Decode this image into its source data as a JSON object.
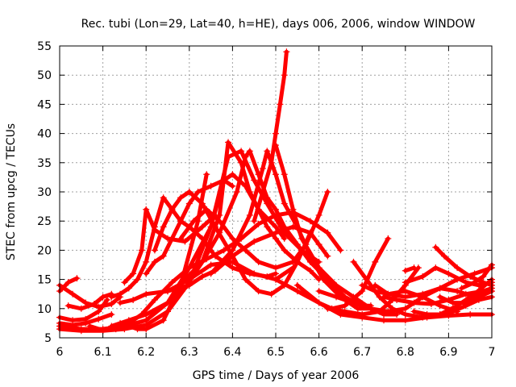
{
  "chart_data": {
    "type": "scatter",
    "title": "Rec. tubi (Lon=29, Lat=40, h=HE), days 006, 2006, window WINDOW",
    "xlabel": "GPS time / Days of year 2006",
    "ylabel": "STEC from upcg / TECUs",
    "xlim": [
      6,
      7
    ],
    "ylim": [
      5,
      55
    ],
    "xticks": [
      "6",
      "6.1",
      "6.2",
      "6.3",
      "6.4",
      "6.5",
      "6.6",
      "6.7",
      "6.8",
      "6.9",
      "7"
    ],
    "yticks": [
      "5",
      "10",
      "15",
      "20",
      "25",
      "30",
      "35",
      "40",
      "45",
      "50",
      "55"
    ],
    "grid": true,
    "marker": "plus",
    "color": "#ff0000",
    "series": [
      {
        "x": [
          6.0,
          6.02,
          6.04
        ],
        "y": [
          13.0,
          14.5,
          15.2
        ]
      },
      {
        "x": [
          6.0,
          6.03,
          6.06,
          6.09,
          6.12
        ],
        "y": [
          7.5,
          7.2,
          7.5,
          8.2,
          9.0
        ]
      },
      {
        "x": [
          6.0,
          6.03,
          6.06,
          6.09,
          6.12,
          6.14
        ],
        "y": [
          14.0,
          12.5,
          11.0,
          10.3,
          10.8,
          12.0
        ]
      },
      {
        "x": [
          6.0,
          6.03,
          6.06,
          6.09,
          6.11
        ],
        "y": [
          8.5,
          8.0,
          8.2,
          9.5,
          11.5
        ]
      },
      {
        "x": [
          6.02,
          6.05,
          6.08,
          6.1,
          6.12
        ],
        "y": [
          10.5,
          10.0,
          10.8,
          12.0,
          12.5
        ]
      },
      {
        "x": [
          6.0,
          6.05,
          6.1,
          6.15,
          6.2,
          6.25,
          6.3,
          6.35,
          6.38,
          6.4,
          6.43,
          6.46,
          6.5,
          6.52
        ],
        "y": [
          7.0,
          6.5,
          6.5,
          7.0,
          8.0,
          11.0,
          17.0,
          24.0,
          32.0,
          33.0,
          31.0,
          27.0,
          24.0,
          22.0
        ]
      },
      {
        "x": [
          6.0,
          6.05,
          6.1,
          6.15,
          6.2,
          6.25,
          6.3,
          6.35,
          6.39,
          6.42,
          6.45,
          6.48,
          6.52,
          6.56,
          6.6
        ],
        "y": [
          6.5,
          6.2,
          6.2,
          6.5,
          7.2,
          9.5,
          14.5,
          24.0,
          36.0,
          37.0,
          32.0,
          28.0,
          23.0,
          20.0,
          18.0
        ]
      },
      {
        "x": [
          6.07,
          6.1,
          6.13,
          6.16,
          6.19,
          6.22,
          6.26,
          6.3,
          6.34,
          6.38,
          6.42,
          6.46,
          6.5,
          6.54,
          6.58,
          6.62,
          6.65
        ],
        "y": [
          7.0,
          6.3,
          6.5,
          7.5,
          9.0,
          11.5,
          14.5,
          17.0,
          18.5,
          20.0,
          22.0,
          24.5,
          26.0,
          26.5,
          25.0,
          23.0,
          20.0
        ]
      },
      {
        "x": [
          6.12,
          6.16,
          6.2,
          6.25,
          6.29,
          6.33,
          6.37,
          6.39,
          6.42,
          6.44,
          6.46,
          6.48,
          6.5,
          6.52,
          6.55,
          6.58,
          6.6
        ],
        "y": [
          7.0,
          8.0,
          9.0,
          11.0,
          13.5,
          18.0,
          26.0,
          38.5,
          35.0,
          30.0,
          27.0,
          24.0,
          22.0,
          20.0,
          18.0,
          16.5,
          15.0
        ]
      },
      {
        "x": [
          6.14,
          6.18,
          6.2,
          6.24,
          6.28,
          6.32,
          6.34
        ],
        "y": [
          7.5,
          6.5,
          6.5,
          8.0,
          14.0,
          25.0,
          33.0
        ]
      },
      {
        "x": [
          6.14,
          6.17,
          6.2,
          6.25,
          6.3,
          6.33,
          6.36,
          6.4,
          6.45,
          6.5,
          6.54,
          6.58,
          6.6,
          6.62
        ],
        "y": [
          11.0,
          11.5,
          12.5,
          13.0,
          14.0,
          15.5,
          16.5,
          19.0,
          21.5,
          23.0,
          24.0,
          23.0,
          21.0,
          19.0
        ]
      },
      {
        "x": [
          6.15,
          6.17,
          6.19,
          6.2,
          6.22,
          6.25,
          6.29,
          6.33,
          6.36
        ],
        "y": [
          14.5,
          16.0,
          20.0,
          27.0,
          23.5,
          22.0,
          21.5,
          24.0,
          26.0
        ]
      },
      {
        "x": [
          6.12,
          6.14,
          6.16,
          6.18,
          6.2,
          6.22,
          6.24,
          6.26,
          6.28,
          6.3,
          6.33,
          6.36,
          6.4,
          6.44,
          6.48,
          6.5
        ],
        "y": [
          12.0,
          12.5,
          13.5,
          15.0,
          18.0,
          24.0,
          29.0,
          27.0,
          25.0,
          24.0,
          22.0,
          19.0,
          17.0,
          16.0,
          15.5,
          16.0
        ]
      },
      {
        "x": [
          6.22,
          6.24,
          6.26,
          6.28,
          6.3,
          6.33,
          6.36,
          6.4,
          6.43,
          6.46,
          6.49,
          6.52,
          6.55,
          6.58
        ],
        "y": [
          20.0,
          24.0,
          27.0,
          29.0,
          30.0,
          28.0,
          24.0,
          19.0,
          15.0,
          13.0,
          12.5,
          14.0,
          18.0,
          23.0
        ]
      },
      {
        "x": [
          6.2,
          6.22,
          6.24,
          6.26,
          6.28,
          6.3,
          6.32,
          6.35,
          6.38,
          6.4
        ],
        "y": [
          16.0,
          18.0,
          19.0,
          22.0,
          25.0,
          28.0,
          30.0,
          31.0,
          32.0,
          31.0
        ]
      },
      {
        "x": [
          6.28,
          6.31,
          6.34,
          6.37,
          6.4,
          6.43,
          6.46,
          6.5,
          6.54,
          6.57,
          6.6,
          6.62
        ],
        "y": [
          22.0,
          25.0,
          27.0,
          25.0,
          22.0,
          20.0,
          18.0,
          17.0,
          18.0,
          21.0,
          26.0,
          30.0
        ]
      },
      {
        "x": [
          6.25,
          6.3,
          6.35,
          6.4,
          6.45,
          6.5,
          6.54
        ],
        "y": [
          13.0,
          15.0,
          17.5,
          18.0,
          16.0,
          15.0,
          17.0
        ]
      },
      {
        "x": [
          6.29,
          6.33,
          6.37,
          6.41,
          6.43,
          6.44,
          6.46,
          6.48,
          6.5,
          6.52,
          6.55,
          6.58,
          6.62,
          6.66,
          6.7,
          6.72
        ],
        "y": [
          15.0,
          18.0,
          23.0,
          30.0,
          36.0,
          37.0,
          33.0,
          29.0,
          27.0,
          24.0,
          21.0,
          18.0,
          15.0,
          12.0,
          10.5,
          10.5
        ]
      },
      {
        "x": [
          6.35,
          6.4,
          6.44,
          6.47,
          6.48,
          6.5,
          6.52,
          6.55,
          6.58,
          6.61,
          6.65,
          6.69,
          6.72
        ],
        "y": [
          16.0,
          20.0,
          26.0,
          34.0,
          37.0,
          33.0,
          28.0,
          24.0,
          19.0,
          15.0,
          12.0,
          10.0,
          10.0
        ]
      },
      {
        "x": [
          6.45,
          6.47,
          6.49,
          6.5,
          6.51,
          6.52,
          6.525
        ],
        "y": [
          25.0,
          30.0,
          35.0,
          40.0,
          45.0,
          50.0,
          54.0
        ]
      },
      {
        "x": [
          6.5,
          6.52,
          6.54,
          6.56,
          6.6,
          6.64,
          6.68,
          6.72,
          6.75,
          6.78
        ],
        "y": [
          38.0,
          33.0,
          27.0,
          22.0,
          17.0,
          14.0,
          12.0,
          10.0,
          9.0,
          9.0
        ]
      },
      {
        "x": [
          6.55,
          6.6,
          6.63,
          6.66,
          6.7,
          6.73,
          6.76
        ],
        "y": [
          14.0,
          11.0,
          10.0,
          10.5,
          13.0,
          18.0,
          22.0
        ]
      },
      {
        "x": [
          6.5,
          6.55,
          6.6,
          6.65,
          6.7,
          6.75,
          6.8,
          6.85,
          6.9,
          6.95,
          7.0
        ],
        "y": [
          15.0,
          13.0,
          11.0,
          9.0,
          8.5,
          8.0,
          8.0,
          8.5,
          8.8,
          9.0,
          9.0
        ]
      },
      {
        "x": [
          6.6,
          6.64,
          6.68,
          6.72,
          6.76,
          6.8,
          6.84,
          6.88,
          6.92,
          6.96,
          7.0
        ],
        "y": [
          13.0,
          12.0,
          11.0,
          10.0,
          9.5,
          10.0,
          12.0,
          13.5,
          13.0,
          12.0,
          13.0
        ]
      },
      {
        "x": [
          6.62,
          6.66,
          6.7,
          6.74,
          6.77,
          6.8,
          6.83
        ],
        "y": [
          10.0,
          9.5,
          9.0,
          9.5,
          11.5,
          14.0,
          17.0
        ]
      },
      {
        "x": [
          6.68,
          6.71,
          6.74,
          6.77,
          6.8,
          6.84,
          6.88,
          6.92,
          6.96,
          7.0
        ],
        "y": [
          18.0,
          15.0,
          12.0,
          10.0,
          9.0,
          8.5,
          9.0,
          10.5,
          12.5,
          15.0
        ]
      },
      {
        "x": [
          6.7,
          6.73,
          6.76,
          6.8,
          6.84,
          6.88,
          6.92
        ],
        "y": [
          14.0,
          13.0,
          12.5,
          13.0,
          12.0,
          10.5,
          9.5
        ]
      },
      {
        "x": [
          6.73,
          6.76,
          6.8,
          6.84,
          6.88,
          6.92,
          6.96,
          7.0
        ],
        "y": [
          14.0,
          12.5,
          12.0,
          12.5,
          13.5,
          15.0,
          16.0,
          17.0
        ]
      },
      {
        "x": [
          6.75,
          6.78,
          6.82,
          6.86,
          6.9,
          6.94,
          6.98,
          7.0
        ],
        "y": [
          12.0,
          11.5,
          11.0,
          10.8,
          11.5,
          12.5,
          13.0,
          13.5
        ]
      },
      {
        "x": [
          6.8,
          6.84,
          6.87,
          6.9,
          6.94,
          6.97,
          7.0
        ],
        "y": [
          14.5,
          15.5,
          17.0,
          16.0,
          14.5,
          14.0,
          14.5
        ]
      },
      {
        "x": [
          6.87,
          6.89,
          6.92,
          6.95,
          6.98,
          7.0
        ],
        "y": [
          20.5,
          19.0,
          17.0,
          15.5,
          14.5,
          14.0
        ]
      },
      {
        "x": [
          6.88,
          6.91,
          6.94,
          6.97,
          7.0
        ],
        "y": [
          12.0,
          11.0,
          11.0,
          12.0,
          13.0
        ]
      },
      {
        "x": [
          6.82,
          6.85,
          6.88,
          6.91,
          6.94,
          6.97,
          7.0
        ],
        "y": [
          9.5,
          9.0,
          9.0,
          9.5,
          10.5,
          11.5,
          12.0
        ]
      },
      {
        "x": [
          6.93,
          6.96,
          6.98,
          7.0
        ],
        "y": [
          13.5,
          14.5,
          15.5,
          17.5
        ]
      },
      {
        "x": [
          6.8,
          6.82
        ],
        "y": [
          16.5,
          17.0
        ]
      }
    ]
  }
}
